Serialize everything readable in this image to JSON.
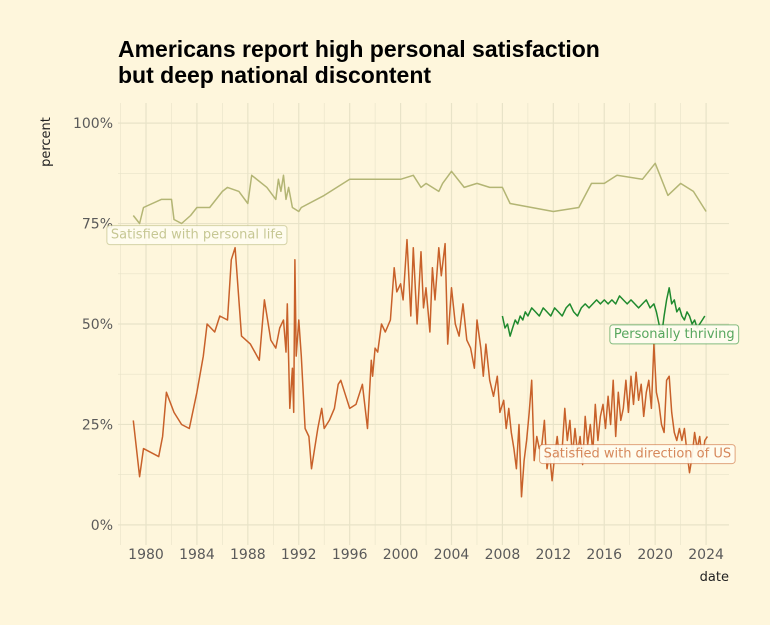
{
  "chart_data": {
    "type": "line",
    "title_lines": [
      "Americans report high personal satisfaction",
      "but deep national discontent"
    ],
    "xlabel": "date",
    "ylabel": "percent",
    "xlim": [
      1977.8,
      2025.8
    ],
    "ylim": [
      -0.05,
      1.05
    ],
    "x_ticks": [
      1980,
      1984,
      1988,
      1992,
      1996,
      2000,
      2004,
      2008,
      2012,
      2016,
      2020,
      2024
    ],
    "x_tick_labels": [
      "1980",
      "1984",
      "1988",
      "1992",
      "1996",
      "2000",
      "2004",
      "2008",
      "2012",
      "2016",
      "2020",
      "2024"
    ],
    "y_ticks": [
      0,
      0.25,
      0.5,
      0.75,
      1.0
    ],
    "y_tick_labels": [
      "0%",
      "25%",
      "50%",
      "75%",
      "100%"
    ],
    "grid": true,
    "background": "#fef6dc",
    "series": [
      {
        "name": "Satisfied with personal life",
        "color": "#b3b574",
        "label_anchor": [
          1984,
          0.725
        ],
        "points": [
          [
            1979.0,
            0.77
          ],
          [
            1979.5,
            0.75
          ],
          [
            1979.8,
            0.79
          ],
          [
            1981.2,
            0.81
          ],
          [
            1982.0,
            0.81
          ],
          [
            1982.2,
            0.76
          ],
          [
            1982.8,
            0.75
          ],
          [
            1983.5,
            0.77
          ],
          [
            1984.0,
            0.79
          ],
          [
            1985.0,
            0.79
          ],
          [
            1986.0,
            0.83
          ],
          [
            1986.4,
            0.84
          ],
          [
            1987.3,
            0.83
          ],
          [
            1988.0,
            0.8
          ],
          [
            1988.3,
            0.87
          ],
          [
            1989.5,
            0.84
          ],
          [
            1990.2,
            0.81
          ],
          [
            1990.4,
            0.86
          ],
          [
            1990.6,
            0.83
          ],
          [
            1990.8,
            0.87
          ],
          [
            1991.0,
            0.81
          ],
          [
            1991.2,
            0.84
          ],
          [
            1991.5,
            0.79
          ],
          [
            1992.0,
            0.78
          ],
          [
            1992.2,
            0.79
          ],
          [
            1994.0,
            0.82
          ],
          [
            1996.0,
            0.86
          ],
          [
            1999.0,
            0.86
          ],
          [
            2000.0,
            0.86
          ],
          [
            2001.0,
            0.87
          ],
          [
            2001.6,
            0.84
          ],
          [
            2002.0,
            0.85
          ],
          [
            2003.0,
            0.83
          ],
          [
            2003.3,
            0.85
          ],
          [
            2004.0,
            0.88
          ],
          [
            2005.0,
            0.84
          ],
          [
            2006.0,
            0.85
          ],
          [
            2007.0,
            0.84
          ],
          [
            2008.0,
            0.84
          ],
          [
            2008.6,
            0.8
          ],
          [
            2012.0,
            0.78
          ],
          [
            2014.0,
            0.79
          ],
          [
            2015.0,
            0.85
          ],
          [
            2016.0,
            0.85
          ],
          [
            2017.0,
            0.87
          ],
          [
            2019.0,
            0.86
          ],
          [
            2020.0,
            0.9
          ],
          [
            2021.0,
            0.82
          ],
          [
            2022.0,
            0.85
          ],
          [
            2023.0,
            0.83
          ],
          [
            2024.0,
            0.78
          ]
        ]
      },
      {
        "name": "Satisfied with direction of US",
        "color": "#c8612a",
        "label_anchor": [
          2018.6,
          0.18
        ],
        "points": [
          [
            1979.0,
            0.26
          ],
          [
            1979.5,
            0.12
          ],
          [
            1979.8,
            0.19
          ],
          [
            1981.0,
            0.17
          ],
          [
            1981.3,
            0.22
          ],
          [
            1981.6,
            0.33
          ],
          [
            1982.2,
            0.28
          ],
          [
            1982.8,
            0.25
          ],
          [
            1983.4,
            0.24
          ],
          [
            1984.0,
            0.33
          ],
          [
            1984.5,
            0.42
          ],
          [
            1984.8,
            0.5
          ],
          [
            1985.4,
            0.48
          ],
          [
            1985.8,
            0.52
          ],
          [
            1986.4,
            0.51
          ],
          [
            1986.7,
            0.66
          ],
          [
            1987.0,
            0.69
          ],
          [
            1987.5,
            0.47
          ],
          [
            1988.2,
            0.45
          ],
          [
            1988.9,
            0.41
          ],
          [
            1989.3,
            0.56
          ],
          [
            1989.8,
            0.46
          ],
          [
            1990.2,
            0.44
          ],
          [
            1990.5,
            0.49
          ],
          [
            1990.8,
            0.51
          ],
          [
            1991.0,
            0.43
          ],
          [
            1991.1,
            0.55
          ],
          [
            1991.3,
            0.29
          ],
          [
            1991.5,
            0.39
          ],
          [
            1991.6,
            0.28
          ],
          [
            1991.7,
            0.66
          ],
          [
            1991.8,
            0.42
          ],
          [
            1992.0,
            0.51
          ],
          [
            1992.2,
            0.42
          ],
          [
            1992.5,
            0.24
          ],
          [
            1992.8,
            0.22
          ],
          [
            1993.0,
            0.14
          ],
          [
            1993.2,
            0.18
          ],
          [
            1993.5,
            0.24
          ],
          [
            1993.8,
            0.29
          ],
          [
            1994.0,
            0.24
          ],
          [
            1994.4,
            0.26
          ],
          [
            1994.8,
            0.29
          ],
          [
            1995.1,
            0.35
          ],
          [
            1995.3,
            0.36
          ],
          [
            1995.6,
            0.33
          ],
          [
            1996.0,
            0.29
          ],
          [
            1996.5,
            0.3
          ],
          [
            1997.0,
            0.35
          ],
          [
            1997.4,
            0.24
          ],
          [
            1997.7,
            0.41
          ],
          [
            1997.8,
            0.37
          ],
          [
            1998.0,
            0.44
          ],
          [
            1998.2,
            0.43
          ],
          [
            1998.5,
            0.5
          ],
          [
            1998.8,
            0.48
          ],
          [
            1999.2,
            0.51
          ],
          [
            1999.5,
            0.64
          ],
          [
            1999.7,
            0.58
          ],
          [
            2000.0,
            0.6
          ],
          [
            2000.2,
            0.56
          ],
          [
            2000.5,
            0.71
          ],
          [
            2000.8,
            0.52
          ],
          [
            2001.0,
            0.69
          ],
          [
            2001.3,
            0.5
          ],
          [
            2001.6,
            0.68
          ],
          [
            2001.8,
            0.54
          ],
          [
            2002.0,
            0.59
          ],
          [
            2002.3,
            0.48
          ],
          [
            2002.5,
            0.64
          ],
          [
            2002.7,
            0.56
          ],
          [
            2003.0,
            0.69
          ],
          [
            2003.2,
            0.62
          ],
          [
            2003.5,
            0.7
          ],
          [
            2003.7,
            0.45
          ],
          [
            2004.0,
            0.59
          ],
          [
            2004.3,
            0.5
          ],
          [
            2004.6,
            0.47
          ],
          [
            2004.9,
            0.55
          ],
          [
            2005.2,
            0.46
          ],
          [
            2005.5,
            0.44
          ],
          [
            2005.8,
            0.39
          ],
          [
            2006.0,
            0.51
          ],
          [
            2006.3,
            0.44
          ],
          [
            2006.5,
            0.37
          ],
          [
            2006.7,
            0.45
          ],
          [
            2007.0,
            0.36
          ],
          [
            2007.3,
            0.32
          ],
          [
            2007.6,
            0.37
          ],
          [
            2007.8,
            0.28
          ],
          [
            2008.1,
            0.31
          ],
          [
            2008.3,
            0.24
          ],
          [
            2008.5,
            0.29
          ],
          [
            2008.7,
            0.23
          ],
          [
            2008.9,
            0.19
          ],
          [
            2009.1,
            0.14
          ],
          [
            2009.3,
            0.25
          ],
          [
            2009.5,
            0.07
          ],
          [
            2009.7,
            0.16
          ],
          [
            2009.9,
            0.21
          ],
          [
            2010.1,
            0.28
          ],
          [
            2010.3,
            0.36
          ],
          [
            2010.5,
            0.16
          ],
          [
            2010.7,
            0.22
          ],
          [
            2010.9,
            0.19
          ],
          [
            2011.1,
            0.2
          ],
          [
            2011.3,
            0.26
          ],
          [
            2011.5,
            0.14
          ],
          [
            2011.7,
            0.18
          ],
          [
            2011.9,
            0.11
          ],
          [
            2012.1,
            0.17
          ],
          [
            2012.3,
            0.22
          ],
          [
            2012.5,
            0.16
          ],
          [
            2012.7,
            0.19
          ],
          [
            2012.9,
            0.29
          ],
          [
            2013.1,
            0.21
          ],
          [
            2013.3,
            0.26
          ],
          [
            2013.5,
            0.17
          ],
          [
            2013.7,
            0.24
          ],
          [
            2013.9,
            0.18
          ],
          [
            2014.1,
            0.22
          ],
          [
            2014.3,
            0.15
          ],
          [
            2014.5,
            0.27
          ],
          [
            2014.7,
            0.2
          ],
          [
            2014.9,
            0.25
          ],
          [
            2015.1,
            0.18
          ],
          [
            2015.3,
            0.3
          ],
          [
            2015.5,
            0.21
          ],
          [
            2015.7,
            0.27
          ],
          [
            2015.9,
            0.3
          ],
          [
            2016.1,
            0.24
          ],
          [
            2016.3,
            0.32
          ],
          [
            2016.5,
            0.25
          ],
          [
            2016.7,
            0.36
          ],
          [
            2016.9,
            0.22
          ],
          [
            2017.1,
            0.33
          ],
          [
            2017.3,
            0.26
          ],
          [
            2017.5,
            0.29
          ],
          [
            2017.7,
            0.36
          ],
          [
            2017.9,
            0.28
          ],
          [
            2018.1,
            0.37
          ],
          [
            2018.3,
            0.3
          ],
          [
            2018.5,
            0.38
          ],
          [
            2018.7,
            0.31
          ],
          [
            2018.9,
            0.35
          ],
          [
            2019.1,
            0.27
          ],
          [
            2019.3,
            0.33
          ],
          [
            2019.5,
            0.36
          ],
          [
            2019.7,
            0.29
          ],
          [
            2019.9,
            0.45
          ],
          [
            2020.1,
            0.33
          ],
          [
            2020.3,
            0.3
          ],
          [
            2020.5,
            0.25
          ],
          [
            2020.7,
            0.23
          ],
          [
            2020.9,
            0.36
          ],
          [
            2021.1,
            0.37
          ],
          [
            2021.3,
            0.28
          ],
          [
            2021.5,
            0.23
          ],
          [
            2021.7,
            0.21
          ],
          [
            2021.9,
            0.24
          ],
          [
            2022.1,
            0.21
          ],
          [
            2022.3,
            0.24
          ],
          [
            2022.5,
            0.18
          ],
          [
            2022.7,
            0.13
          ],
          [
            2022.9,
            0.17
          ],
          [
            2023.1,
            0.23
          ],
          [
            2023.3,
            0.19
          ],
          [
            2023.5,
            0.22
          ],
          [
            2023.7,
            0.16
          ],
          [
            2023.9,
            0.21
          ],
          [
            2024.1,
            0.22
          ]
        ]
      },
      {
        "name": "Personally thriving",
        "color": "#1f8a2e",
        "label_anchor": [
          2021.5,
          0.478
        ],
        "points": [
          [
            2008.0,
            0.52
          ],
          [
            2008.2,
            0.49
          ],
          [
            2008.4,
            0.5
          ],
          [
            2008.6,
            0.47
          ],
          [
            2008.8,
            0.49
          ],
          [
            2009.0,
            0.51
          ],
          [
            2009.2,
            0.5
          ],
          [
            2009.4,
            0.52
          ],
          [
            2009.6,
            0.51
          ],
          [
            2009.8,
            0.53
          ],
          [
            2010.0,
            0.52
          ],
          [
            2010.3,
            0.54
          ],
          [
            2010.6,
            0.53
          ],
          [
            2010.9,
            0.52
          ],
          [
            2011.2,
            0.54
          ],
          [
            2011.5,
            0.53
          ],
          [
            2011.8,
            0.52
          ],
          [
            2012.1,
            0.54
          ],
          [
            2012.4,
            0.53
          ],
          [
            2012.7,
            0.52
          ],
          [
            2013.0,
            0.54
          ],
          [
            2013.3,
            0.55
          ],
          [
            2013.6,
            0.53
          ],
          [
            2013.9,
            0.52
          ],
          [
            2014.2,
            0.54
          ],
          [
            2014.5,
            0.55
          ],
          [
            2014.8,
            0.54
          ],
          [
            2015.1,
            0.55
          ],
          [
            2015.4,
            0.56
          ],
          [
            2015.7,
            0.55
          ],
          [
            2016.0,
            0.56
          ],
          [
            2016.3,
            0.55
          ],
          [
            2016.6,
            0.56
          ],
          [
            2016.9,
            0.55
          ],
          [
            2017.2,
            0.57
          ],
          [
            2017.5,
            0.56
          ],
          [
            2017.8,
            0.55
          ],
          [
            2018.1,
            0.56
          ],
          [
            2018.4,
            0.55
          ],
          [
            2018.7,
            0.54
          ],
          [
            2019.0,
            0.55
          ],
          [
            2019.3,
            0.56
          ],
          [
            2019.6,
            0.54
          ],
          [
            2019.9,
            0.55
          ],
          [
            2020.1,
            0.53
          ],
          [
            2020.3,
            0.5
          ],
          [
            2020.5,
            0.47
          ],
          [
            2020.7,
            0.52
          ],
          [
            2020.9,
            0.56
          ],
          [
            2021.1,
            0.59
          ],
          [
            2021.3,
            0.55
          ],
          [
            2021.5,
            0.56
          ],
          [
            2021.7,
            0.53
          ],
          [
            2021.9,
            0.54
          ],
          [
            2022.1,
            0.52
          ],
          [
            2022.3,
            0.51
          ],
          [
            2022.5,
            0.53
          ],
          [
            2022.7,
            0.52
          ],
          [
            2022.9,
            0.5
          ],
          [
            2023.1,
            0.51
          ],
          [
            2023.3,
            0.49
          ],
          [
            2023.5,
            0.5
          ],
          [
            2023.7,
            0.51
          ],
          [
            2023.9,
            0.52
          ]
        ]
      }
    ]
  }
}
